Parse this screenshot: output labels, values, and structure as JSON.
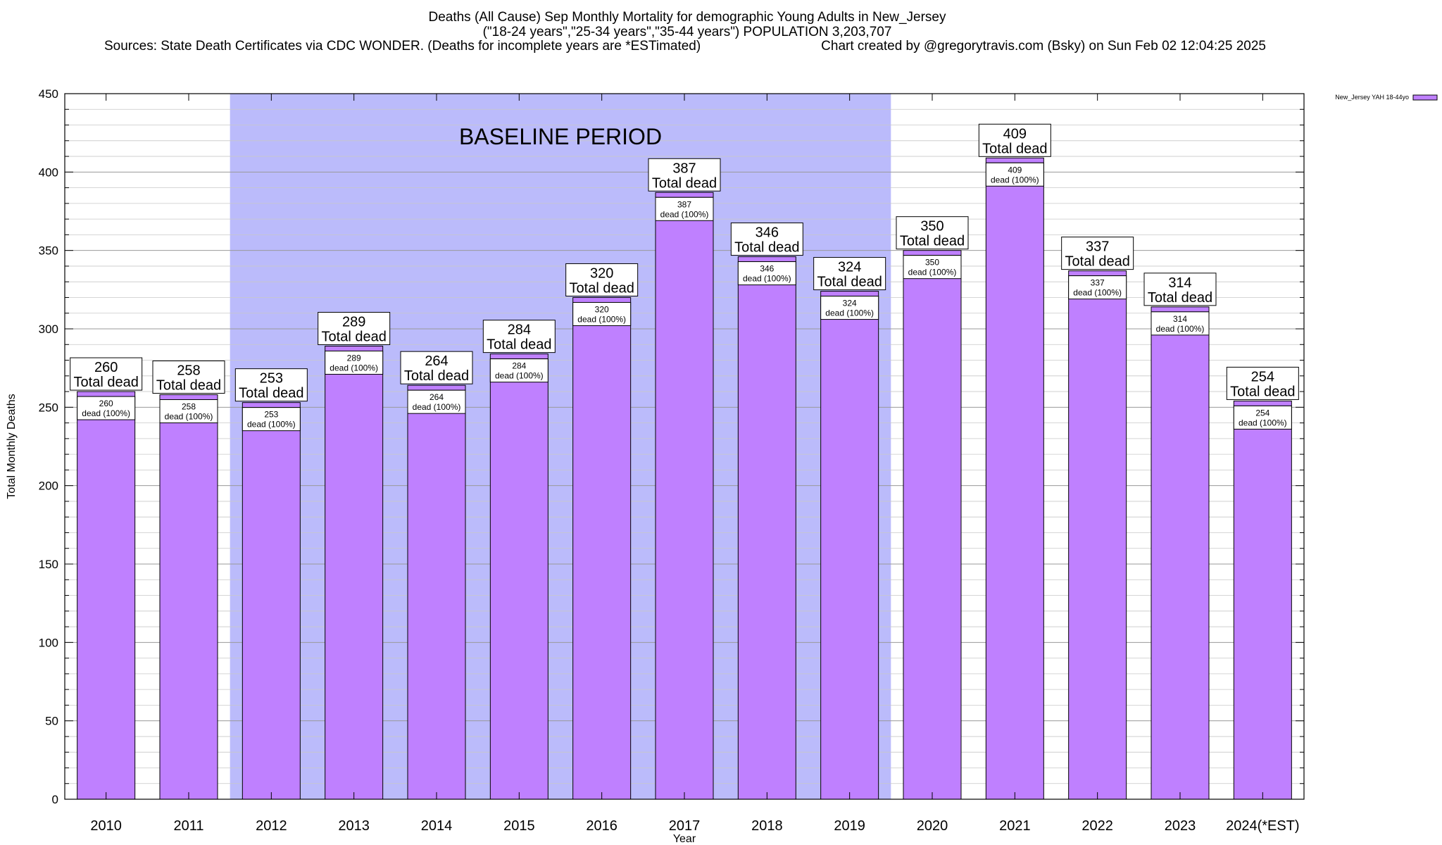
{
  "chart_data": {
    "type": "bar",
    "title_lines": [
      "Deaths (All Cause) Sep Monthly Mortality for demographic Young Adults in New_Jersey",
      "(\"18-24 years\",\"25-34 years\",\"35-44 years\") POPULATION 3,203,707"
    ],
    "sources": "Sources: State Death Certificates via CDC WONDER. (Deaths for incomplete years are *ESTimated)",
    "credit": "Chart created by @gregorytravis.com (Bsky) on Sun Feb 02 12:04:25 2025",
    "xlabel": "Year",
    "ylabel": "Total Monthly Deaths",
    "ylim": [
      0,
      450
    ],
    "y_ticks": [
      "0",
      "50",
      "100",
      "150",
      "200",
      "250",
      "300",
      "350",
      "400",
      "450"
    ],
    "grid": true,
    "categories": [
      "2010",
      "2011",
      "2012",
      "2013",
      "2014",
      "2015",
      "2016",
      "2017",
      "2018",
      "2019",
      "2020",
      "2021",
      "2022",
      "2023",
      "2024(*EST)"
    ],
    "series": [
      {
        "name": "New_Jersey YAH 18-44yo",
        "color": "#bf80ff",
        "values": [
          260,
          258,
          253,
          289,
          264,
          284,
          320,
          387,
          346,
          324,
          350,
          409,
          337,
          314,
          254
        ]
      }
    ],
    "total_label_text": "Total dead",
    "inner_label_text": "dead (100%)",
    "baseline": {
      "label": "BASELINE PERIOD",
      "from": "2012",
      "to": "2019",
      "color": "#bbbbfb"
    },
    "legend_position": "top-right"
  }
}
